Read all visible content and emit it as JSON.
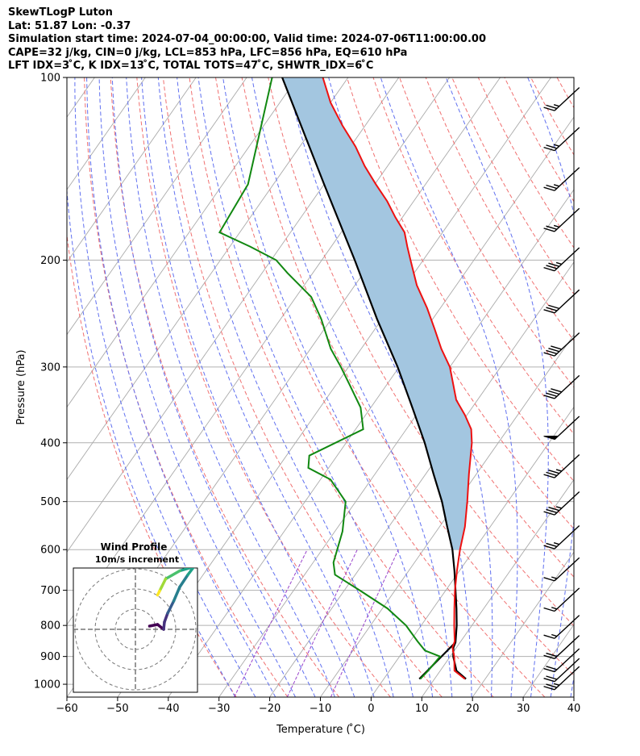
{
  "header": {
    "line1": "SkewTLogP Luton",
    "line2": "Lat: 51.87   Lon: -0.37",
    "line3": "Simulation start time: 2024-07-04_00:00:00, Valid time: 2024-07-06T11:00:00.00",
    "line4": "CAPE=32 j/kg, CIN=0 j/kg, LCL=853 hPa, LFC=856 hPa, EQ=610 hPa",
    "line5": "LFT IDX=3 ̊C, K IDX=13 ̊C, TOTAL TOTS=47 ̊C, SHWTR_IDX=6 ̊C"
  },
  "colors": {
    "temperature": "#ee1111",
    "dewpoint": "#118811",
    "parcel": "#000000",
    "cape_fill": "#a3c6e0",
    "dry_adiabat": "#f07070",
    "moist_adiabat": "#6070f0",
    "mixing_ratio": "#9944cc",
    "isotherm": "#aaaaaa"
  },
  "chart_data": {
    "type": "skewt",
    "xlabel": "Temperature ( ̊C)",
    "ylabel": "Pressure (hPa)",
    "xlim": [
      -60,
      40
    ],
    "ylim": [
      1050,
      100
    ],
    "x_ticks": [
      "−60",
      "−50",
      "−40",
      "−30",
      "−20",
      "−10",
      "0",
      "10",
      "20",
      "30",
      "40"
    ],
    "y_ticks": [
      "100",
      "200",
      "300",
      "400",
      "500",
      "600",
      "700",
      "800",
      "900",
      "1000"
    ],
    "temperature": [
      [
        980,
        16.0
      ],
      [
        950,
        12.8
      ],
      [
        900,
        10.8
      ],
      [
        870,
        9.2
      ],
      [
        850,
        8.8
      ],
      [
        800,
        6.5
      ],
      [
        750,
        4.2
      ],
      [
        700,
        1.8
      ],
      [
        650,
        -0.5
      ],
      [
        600,
        -2.8
      ],
      [
        550,
        -5.0
      ],
      [
        500,
        -8.0
      ],
      [
        450,
        -11.5
      ],
      [
        400,
        -15.2
      ],
      [
        380,
        -17.2
      ],
      [
        360,
        -20.4
      ],
      [
        340,
        -24.2
      ],
      [
        320,
        -27.0
      ],
      [
        300,
        -30.0
      ],
      [
        280,
        -34.2
      ],
      [
        260,
        -38.2
      ],
      [
        240,
        -42.6
      ],
      [
        220,
        -47.8
      ],
      [
        200,
        -52.5
      ],
      [
        190,
        -55.0
      ],
      [
        180,
        -57.5
      ],
      [
        170,
        -61.4
      ],
      [
        160,
        -65.2
      ],
      [
        150,
        -69.8
      ],
      [
        140,
        -74.5
      ],
      [
        130,
        -79.0
      ],
      [
        120,
        -84.5
      ],
      [
        110,
        -90.0
      ],
      [
        100,
        -95.0
      ]
    ],
    "dewpoint": [
      [
        980,
        7.2
      ],
      [
        950,
        7.6
      ],
      [
        900,
        8.0
      ],
      [
        880,
        4.2
      ],
      [
        850,
        1.5
      ],
      [
        800,
        -3.0
      ],
      [
        750,
        -9.0
      ],
      [
        700,
        -17.0
      ],
      [
        660,
        -24.0
      ],
      [
        630,
        -26.0
      ],
      [
        560,
        -28.5
      ],
      [
        500,
        -32.0
      ],
      [
        460,
        -38.0
      ],
      [
        440,
        -44.0
      ],
      [
        420,
        -45.5
      ],
      [
        380,
        -38.5
      ],
      [
        350,
        -42.0
      ],
      [
        320,
        -47.5
      ],
      [
        300,
        -51.5
      ],
      [
        280,
        -56.0
      ],
      [
        250,
        -62.0
      ],
      [
        230,
        -67.0
      ],
      [
        210,
        -75.0
      ],
      [
        200,
        -79.0
      ],
      [
        190,
        -86.0
      ],
      [
        180,
        -94.0
      ],
      [
        150,
        -95.0
      ],
      [
        100,
        -105.0
      ]
    ],
    "parcel": [
      [
        980,
        16.2
      ],
      [
        950,
        13.2
      ],
      [
        900,
        10.6
      ],
      [
        870,
        9.4
      ],
      [
        853,
        9.1
      ],
      [
        800,
        7.0
      ],
      [
        750,
        4.6
      ],
      [
        700,
        1.9
      ],
      [
        650,
        -1.0
      ],
      [
        600,
        -4.3
      ],
      [
        550,
        -8.5
      ],
      [
        500,
        -13.0
      ],
      [
        450,
        -18.5
      ],
      [
        400,
        -24.5
      ],
      [
        350,
        -31.8
      ],
      [
        300,
        -40.3
      ],
      [
        250,
        -51.0
      ],
      [
        200,
        -63.5
      ],
      [
        150,
        -80.0
      ],
      [
        100,
        -103.0
      ]
    ],
    "parcel_lower": [
      [
        980,
        7.0
      ],
      [
        853,
        9.1
      ]
    ],
    "wind_barbs": [
      {
        "p": 110,
        "speed": 25
      },
      {
        "p": 128,
        "speed": 25
      },
      {
        "p": 149,
        "speed": 25
      },
      {
        "p": 174,
        "speed": 25
      },
      {
        "p": 202,
        "speed": 35
      },
      {
        "p": 237,
        "speed": 30
      },
      {
        "p": 279,
        "speed": 40
      },
      {
        "p": 328,
        "speed": 40
      },
      {
        "p": 383,
        "speed": 50
      },
      {
        "p": 443,
        "speed": 35
      },
      {
        "p": 510,
        "speed": 35
      },
      {
        "p": 580,
        "speed": 25
      },
      {
        "p": 655,
        "speed": 15
      },
      {
        "p": 735,
        "speed": 15
      },
      {
        "p": 815,
        "speed": 15
      },
      {
        "p": 880,
        "speed": 20
      },
      {
        "p": 925,
        "speed": 20
      },
      {
        "p": 960,
        "speed": 20
      },
      {
        "p": 990,
        "speed": 25
      }
    ],
    "inset": {
      "title": "Wind Profile",
      "subtitle": "10m/s increment",
      "hodograph": [
        [
          3.5,
          0.8
        ],
        [
          5.5,
          1.2
        ],
        [
          7.0,
          0.0
        ],
        [
          7.2,
          1.8
        ],
        [
          8.0,
          4.0
        ],
        [
          9.5,
          7.0
        ],
        [
          11.0,
          10.5
        ],
        [
          13.0,
          13.5
        ],
        [
          14.5,
          15.5
        ],
        [
          11.0,
          14.5
        ],
        [
          7.5,
          12.5
        ],
        [
          6.5,
          10.5
        ],
        [
          6.0,
          9.5
        ],
        [
          5.5,
          8.5
        ]
      ]
    }
  }
}
